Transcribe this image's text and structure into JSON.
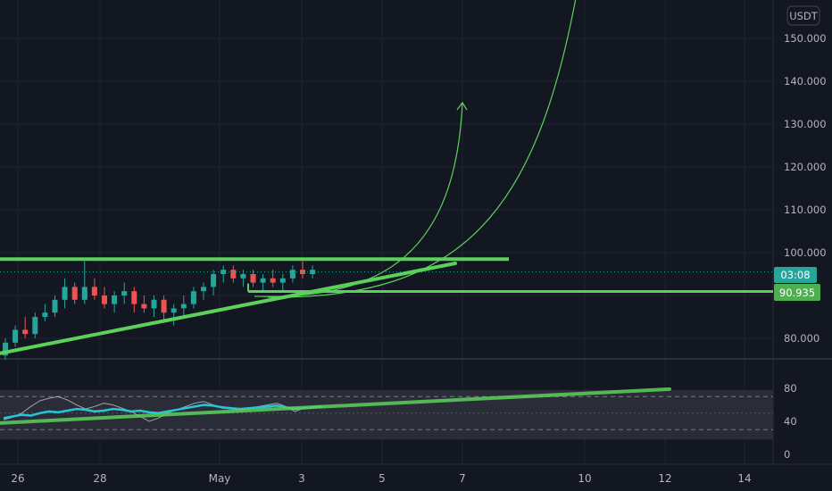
{
  "currency_badge": "USDT",
  "price_axis": {
    "labels": [
      "150.000",
      "140.000",
      "130.000",
      "120.000",
      "110.000",
      "100.000",
      "80.000"
    ],
    "ticks": [
      150,
      140,
      130,
      120,
      110,
      100,
      80
    ]
  },
  "badges": {
    "countdown": "03:08",
    "level_price": "90.935",
    "countdown_color": "#26a69a",
    "level_color": "#4caf50"
  },
  "indicator_axis": {
    "labels": [
      "80",
      "40",
      "0"
    ],
    "ticks": [
      80,
      40,
      0
    ]
  },
  "date_axis": {
    "labels": [
      "26",
      "28",
      "May",
      "3",
      "5",
      "7",
      "10",
      "12",
      "14"
    ]
  },
  "colors": {
    "background": "#131722",
    "up": "#26a69a",
    "down": "#ef5350",
    "drawing": "#5bd15b",
    "indicator": "#26c6da",
    "grid": "#1f2330"
  },
  "chart_data": {
    "type": "candlestick",
    "symbol_currency": "USDT",
    "price_ylim": [
      72,
      156
    ],
    "last_price_line": 95.5,
    "horizontal_levels": [
      98.5,
      90.935
    ],
    "trendlines": [
      {
        "from": [
          "Apr 25",
          76.5
        ],
        "to": [
          "May 6",
          97.5
        ]
      },
      {
        "from": [
          "Apr 25",
          98.5
        ],
        "to": [
          "May 8",
          98.5
        ]
      },
      {
        "from": [
          "May 1",
          92.5
        ],
        "to": [
          "May 1",
          90.935
        ]
      }
    ],
    "projection_arrows": [
      {
        "label": "",
        "to": [
          "May 6",
          135
        ]
      },
      {
        "label": "",
        "to": [
          "May 9",
          158
        ]
      }
    ],
    "candles_ohlc_approx": [
      [
        76,
        80,
        75,
        79
      ],
      [
        79,
        83,
        78,
        82
      ],
      [
        82,
        85,
        80,
        81
      ],
      [
        81,
        86,
        80,
        85
      ],
      [
        85,
        88,
        84,
        86
      ],
      [
        86,
        90,
        85,
        89
      ],
      [
        89,
        94,
        87,
        92
      ],
      [
        92,
        93,
        88,
        89
      ],
      [
        89,
        98,
        88,
        92
      ],
      [
        92,
        94,
        89,
        90
      ],
      [
        90,
        92,
        87,
        88
      ],
      [
        88,
        91,
        86,
        90
      ],
      [
        90,
        93,
        88,
        91
      ],
      [
        91,
        92,
        86,
        88
      ],
      [
        88,
        90,
        86,
        87
      ],
      [
        87,
        90,
        85,
        89
      ],
      [
        89,
        90,
        84,
        86
      ],
      [
        86,
        88,
        83,
        87
      ],
      [
        87,
        90,
        85,
        88
      ],
      [
        88,
        92,
        87,
        91
      ],
      [
        91,
        93,
        89,
        92
      ],
      [
        92,
        96,
        90,
        95
      ],
      [
        95,
        97,
        93,
        96
      ],
      [
        96,
        97,
        93,
        94
      ],
      [
        94,
        96,
        92,
        95
      ],
      [
        95,
        96,
        92,
        93
      ],
      [
        93,
        95,
        91,
        94
      ],
      [
        94,
        96,
        92,
        93
      ],
      [
        93,
        95,
        91,
        94
      ],
      [
        94,
        97,
        93,
        96
      ],
      [
        96,
        98,
        94,
        95
      ],
      [
        95,
        97,
        94,
        96
      ]
    ],
    "indicator": {
      "ylim": [
        0,
        90
      ],
      "band_upper": 70,
      "band_mid": 50,
      "band_lower": 30,
      "values": [
        44,
        46,
        48,
        47,
        50,
        52,
        51,
        53,
        55,
        54,
        52,
        53,
        55,
        54,
        52,
        53,
        51,
        50,
        52,
        54,
        56,
        58,
        60,
        59,
        57,
        56,
        55,
        56,
        57,
        58,
        59,
        57,
        55,
        56,
        57,
        58
      ],
      "signal": [
        42,
        45,
        50,
        58,
        65,
        68,
        70,
        66,
        60,
        55,
        58,
        62,
        60,
        56,
        52,
        46,
        40,
        44,
        50,
        54,
        58,
        62,
        64,
        60,
        56,
        55,
        54,
        56,
        58,
        60,
        62,
        58,
        52,
        56,
        58,
        57
      ],
      "trendline": {
        "from": [
          "Apr 25",
          38
        ],
        "to": [
          "May 12",
          79
        ]
      }
    }
  }
}
